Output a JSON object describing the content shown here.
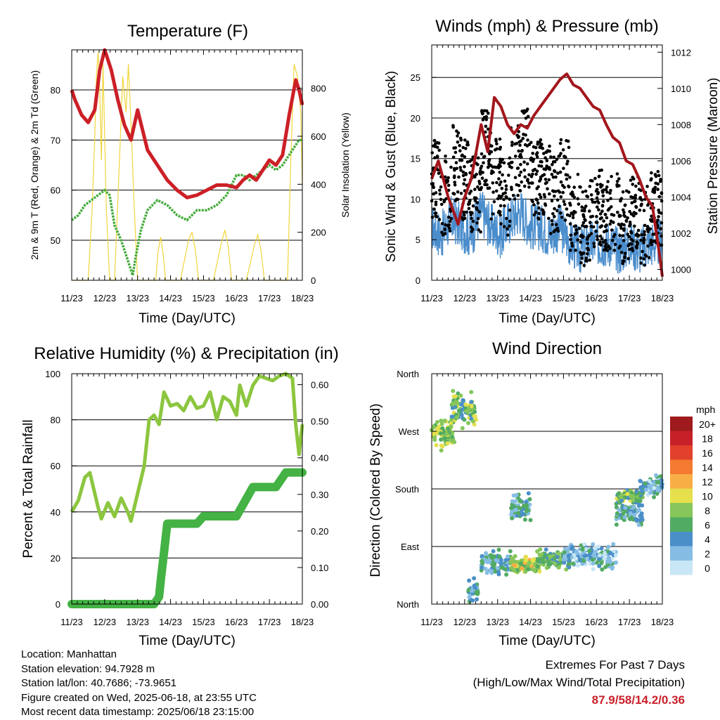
{
  "chart_data": [
    {
      "type": "line",
      "title": "Temperature (F)",
      "xlabel": "Time (Day/UTC)",
      "ylabel": "2m & 9m T (Red, Orange) & 2m Td (Green)",
      "ylabel_right": "Solar Insolation (Yellow)",
      "x_ticks": [
        "11/23",
        "12/23",
        "13/23",
        "14/23",
        "15/23",
        "16/23",
        "17/23",
        "18/23"
      ],
      "ylim": [
        42,
        88
      ],
      "y_ticks": [
        50,
        60,
        70,
        80
      ],
      "ylim_right": [
        0,
        960
      ],
      "y_ticks_right": [
        0,
        200,
        400,
        600,
        800
      ],
      "grid": true,
      "series": [
        {
          "axis": "left",
          "color": "#cc2027",
          "x": [
            0,
            0.1,
            0.3,
            0.5,
            0.7,
            0.85,
            1.0,
            1.2,
            1.4,
            1.6,
            1.8,
            2.0,
            2.3,
            2.6,
            2.9,
            3.2,
            3.5,
            3.8,
            4.1,
            4.4,
            4.7,
            5.0,
            5.2,
            5.4,
            5.6,
            5.8,
            6.0,
            6.2,
            6.4,
            6.6,
            6.8,
            6.9,
            7.0
          ],
          "values": [
            80,
            78,
            75,
            73.5,
            76,
            84,
            88,
            84,
            78,
            73,
            70,
            76,
            68,
            65,
            62,
            60,
            58.5,
            59,
            60,
            61,
            61,
            60.5,
            62,
            63,
            62,
            64,
            66,
            65,
            67,
            75,
            82,
            80,
            77
          ]
        },
        {
          "axis": "left",
          "color": "#44aa3a",
          "x": [
            0,
            0.2,
            0.4,
            0.6,
            0.8,
            1.0,
            1.15,
            1.3,
            1.5,
            1.7,
            1.85,
            1.95,
            2.1,
            2.3,
            2.6,
            2.9,
            3.2,
            3.5,
            3.8,
            4.1,
            4.4,
            4.7,
            5.0,
            5.2,
            5.4,
            5.6,
            5.8,
            6.0,
            6.2,
            6.4,
            6.6,
            6.8,
            6.9,
            7.0
          ],
          "values": [
            54,
            55,
            57,
            58,
            59,
            60,
            59,
            53,
            50,
            46,
            43,
            47,
            52,
            56,
            58,
            57,
            55,
            54,
            56,
            56,
            57,
            59,
            63,
            63,
            62,
            63,
            64,
            65,
            64,
            65,
            67,
            69,
            70,
            70
          ]
        },
        {
          "axis": "right",
          "color": "#f2d53a",
          "x": [
            0,
            0.25,
            0.5,
            0.62,
            0.7,
            0.75,
            0.8,
            0.85,
            0.9,
            0.95,
            1.05,
            1.15,
            1.3,
            1.45,
            1.55,
            1.65,
            1.72,
            1.8,
            1.9,
            2.0,
            2.3,
            2.55,
            2.62,
            2.7,
            2.78,
            2.85,
            3.3,
            3.55,
            3.65,
            3.75,
            3.85,
            4.3,
            4.55,
            4.65,
            4.75,
            4.85,
            5.3,
            5.55,
            5.65,
            5.75,
            5.85,
            6.3,
            6.55,
            6.65,
            6.75,
            6.85,
            6.95,
            7.0
          ],
          "values": [
            0,
            0,
            0,
            300,
            600,
            850,
            950,
            800,
            500,
            900,
            300,
            0,
            0,
            500,
            850,
            700,
            900,
            650,
            300,
            0,
            0,
            0,
            120,
            180,
            100,
            0,
            0,
            170,
            200,
            130,
            0,
            0,
            160,
            210,
            140,
            0,
            0,
            150,
            190,
            120,
            0,
            0,
            0,
            500,
            900,
            850,
            700,
            400
          ]
        }
      ]
    },
    {
      "type": "line",
      "title": "Winds (mph) & Pressure (mb)",
      "xlabel": "Time (Day/UTC)",
      "ylabel": "Sonic Wind & Gust (Blue, Black)",
      "ylabel_right": "Station Pressure (Maroon)",
      "x_ticks": [
        "11/23",
        "12/23",
        "13/23",
        "14/23",
        "15/23",
        "16/23",
        "17/23",
        "18/23"
      ],
      "ylim": [
        0,
        29
      ],
      "y_ticks": [
        0,
        5,
        10,
        15,
        20,
        25
      ],
      "ylim_right": [
        999.4,
        1012.4
      ],
      "y_ticks_right": [
        1000,
        1002,
        1004,
        1006,
        1008,
        1010,
        1012
      ],
      "grid": true,
      "series": [
        {
          "axis": "right",
          "color": "#a3161c",
          "x": [
            0,
            0.2,
            0.5,
            0.8,
            1.0,
            1.2,
            1.5,
            1.7,
            1.9,
            2.1,
            2.3,
            2.5,
            2.7,
            2.9,
            3.1,
            3.3,
            3.5,
            3.7,
            3.9,
            4.1,
            4.3,
            4.5,
            4.7,
            4.9,
            5.1,
            5.3,
            5.5,
            5.7,
            5.9,
            6.1,
            6.3,
            6.5,
            6.7,
            6.9,
            7.0
          ],
          "values": [
            1005,
            1006,
            1004,
            1002.5,
            1004,
            1005,
            1008,
            1006.5,
            1009.5,
            1009,
            1008,
            1007.5,
            1008,
            1007.8,
            1008.5,
            1009,
            1009.5,
            1010,
            1010.5,
            1010.8,
            1010.2,
            1010,
            1009.5,
            1009,
            1008.8,
            1008,
            1007.3,
            1007,
            1006,
            1005.8,
            1005,
            1004,
            1003.5,
            1001,
            999.6
          ]
        },
        {
          "axis": "left",
          "color": "#4a8dcc",
          "x": [
            0,
            0.3,
            0.6,
            0.9,
            1.2,
            1.5,
            1.8,
            2.1,
            2.4,
            2.7,
            3.0,
            3.3,
            3.6,
            3.9,
            4.2,
            4.5,
            4.8,
            5.1,
            5.4,
            5.7,
            6.0,
            6.3,
            6.6,
            6.9,
            7.0
          ],
          "values": [
            6,
            5,
            7,
            6,
            5,
            8,
            6,
            5,
            7,
            8,
            6,
            6,
            5,
            6,
            4,
            3,
            4,
            4,
            4,
            3,
            4,
            3,
            4,
            4,
            5
          ]
        }
      ]
    },
    {
      "type": "line",
      "title": "Relative Humidity (%) & Precipitation (in)",
      "xlabel": "Time (Day/UTC)",
      "ylabel": "Percent & Total Rainfall",
      "x_ticks": [
        "11/23",
        "12/23",
        "13/23",
        "14/23",
        "15/23",
        "16/23",
        "17/23",
        "18/23"
      ],
      "ylim": [
        0,
        100
      ],
      "y_ticks": [
        0,
        20,
        40,
        60,
        80,
        100
      ],
      "ylim_right": [
        0,
        0.63
      ],
      "y_ticks_right": [
        "0.00",
        "0.10",
        "0.20",
        "0.30",
        "0.40",
        "0.50",
        "0.60"
      ],
      "grid": true,
      "series": [
        {
          "axis": "left",
          "color": "#8cc63f",
          "x": [
            0,
            0.2,
            0.4,
            0.55,
            0.8,
            0.9,
            1.1,
            1.3,
            1.5,
            1.7,
            1.8,
            2.0,
            2.2,
            2.35,
            2.5,
            2.65,
            2.8,
            3.0,
            3.2,
            3.4,
            3.6,
            3.8,
            4.0,
            4.2,
            4.4,
            4.6,
            4.8,
            5.0,
            5.1,
            5.3,
            5.5,
            5.7,
            5.9,
            6.1,
            6.3,
            6.5,
            6.6,
            6.7,
            6.8,
            6.9,
            7.0
          ],
          "values": [
            40,
            45,
            55,
            57,
            42,
            37,
            44,
            38,
            46,
            40,
            36,
            48,
            60,
            80,
            82,
            78,
            92,
            86,
            87,
            84,
            90,
            85,
            86,
            92,
            80,
            90,
            88,
            82,
            95,
            86,
            95,
            99,
            98,
            97,
            99,
            100,
            99,
            98,
            78,
            65,
            78
          ]
        },
        {
          "axis": "right",
          "color": "#44b244",
          "x": [
            0,
            2.5,
            2.65,
            2.72,
            2.8,
            2.85,
            2.9,
            3.5,
            3.8,
            4.0,
            4.5,
            5.0,
            5.5,
            6.0,
            6.2,
            6.5,
            7.0
          ],
          "values": [
            0,
            0,
            0.02,
            0.08,
            0.14,
            0.18,
            0.22,
            0.22,
            0.22,
            0.24,
            0.24,
            0.24,
            0.32,
            0.32,
            0.32,
            0.36,
            0.36
          ]
        }
      ]
    },
    {
      "type": "scatter",
      "title": "Wind Direction",
      "xlabel": "Time (Day/UTC)",
      "ylabel": "Direction (Colored By Speed)",
      "x_ticks": [
        "11/23",
        "12/23",
        "13/23",
        "14/23",
        "15/23",
        "16/23",
        "17/23",
        "18/23"
      ],
      "y_ticks": [
        "North",
        "East",
        "South",
        "West",
        "North"
      ],
      "ylim": [
        0,
        360
      ],
      "grid": true,
      "legend_title": "mph",
      "legend_placement": "right",
      "legend": [
        "20+",
        "18",
        "16",
        "14",
        "12",
        "10",
        "8",
        "6",
        "4",
        "2",
        "0"
      ],
      "legend_colors": [
        "#9e1a1c",
        "#c62128",
        "#e2412b",
        "#f47a30",
        "#f9ad45",
        "#e5e04c",
        "#86c65a",
        "#52ab62",
        "#4a8fc8",
        "#86bde4",
        "#c8e6f5"
      ],
      "clusters": [
        {
          "x0": 0.0,
          "x1": 0.7,
          "dir_mean": 265,
          "dir_spread": 30,
          "speed": 8
        },
        {
          "x0": 0.6,
          "x1": 1.35,
          "dir_mean": 305,
          "dir_spread": 35,
          "speed": 7
        },
        {
          "x0": 1.1,
          "x1": 1.4,
          "dir_mean": 20,
          "dir_spread": 25,
          "speed": 4
        },
        {
          "x0": 1.5,
          "x1": 2.4,
          "dir_mean": 65,
          "dir_spread": 25,
          "speed": 4
        },
        {
          "x0": 2.4,
          "x1": 3.0,
          "dir_mean": 150,
          "dir_spread": 30,
          "speed": 4
        },
        {
          "x0": 2.4,
          "x1": 3.3,
          "dir_mean": 60,
          "dir_spread": 18,
          "speed": 9
        },
        {
          "x0": 3.2,
          "x1": 4.2,
          "dir_mean": 70,
          "dir_spread": 20,
          "speed": 6
        },
        {
          "x0": 4.0,
          "x1": 5.6,
          "dir_mean": 75,
          "dir_spread": 25,
          "speed": 3
        },
        {
          "x0": 5.6,
          "x1": 6.4,
          "dir_mean": 140,
          "dir_spread": 25,
          "speed": 4
        },
        {
          "x0": 5.6,
          "x1": 6.4,
          "dir_mean": 168,
          "dir_spread": 12,
          "speed": 7
        },
        {
          "x0": 6.3,
          "x1": 7.0,
          "dir_mean": 185,
          "dir_spread": 25,
          "speed": 3
        }
      ]
    }
  ],
  "footer": {
    "location": "Location: Manhattan",
    "elevation": "Station elevation: 94.7928 m",
    "latlon": "Station lat/lon: 40.7686; -73.9651",
    "created": "Figure created on Wed, 2025-06-18, at 23:55 UTC",
    "recent": "Most recent data timestamp: 2025/06/18 23:15:00"
  },
  "extremes": {
    "title": "Extremes For Past 7 Days",
    "subtitle": "(High/Low/Max Wind/Total Precipitation)",
    "values": "87.9/58/14.2/0.36"
  }
}
